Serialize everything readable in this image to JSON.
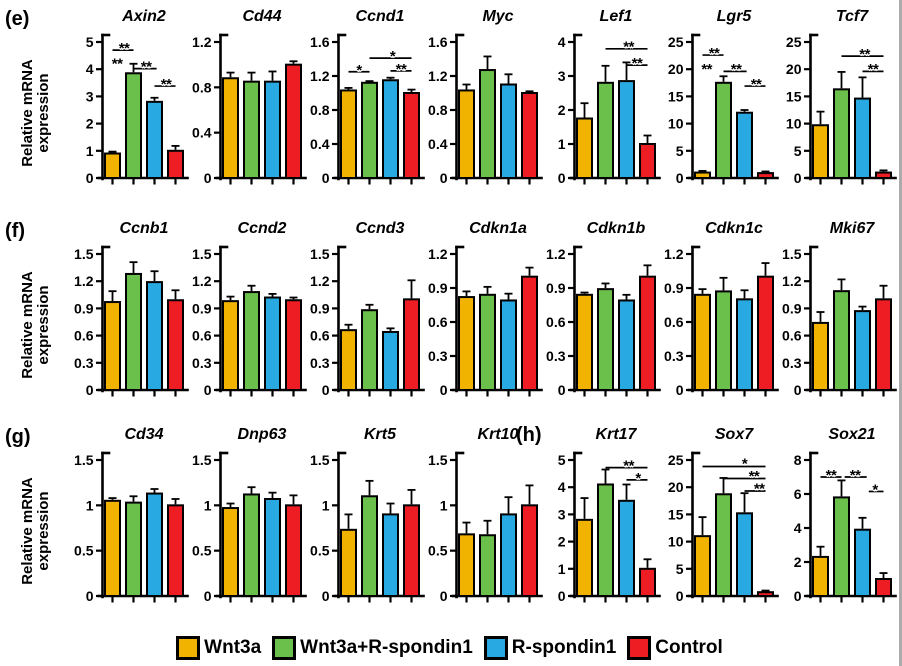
{
  "figure": {
    "panel_labels": {
      "e": "(e)",
      "f": "(f)",
      "g": "(g)",
      "h": "(h)"
    },
    "y_axis_label": "Relative mRNA expression",
    "y_axis_label_lines": [
      "Relative mRNA",
      "expression"
    ],
    "groups": [
      "Wnt3a",
      "Wnt3a+R-spondin1",
      "R-spondin1",
      "Control"
    ],
    "colors": {
      "Wnt3a": "#F2B200",
      "Wnt3a+R-spondin1": "#6BC04B",
      "R-spondin1": "#29A9E1",
      "Control": "#EE1D23"
    },
    "legend": [
      {
        "label": "Wnt3a",
        "color": "#F2B200"
      },
      {
        "label": "Wnt3a+R-spondin1",
        "color": "#6BC04B"
      },
      {
        "label": "R-spondin1",
        "color": "#29A9E1"
      },
      {
        "label": "Control",
        "color": "#EE1D23"
      }
    ]
  },
  "chart_data": [
    {
      "panel": "e",
      "type": "bar",
      "title": "Axin2",
      "ylabel": "Relative mRNA expression",
      "categories": [
        "Wnt3a",
        "Wnt3a+R-spondin1",
        "R-spondin1",
        "Control"
      ],
      "values": [
        0.9,
        3.85,
        2.8,
        1.0
      ],
      "errors": [
        0.07,
        0.35,
        0.15,
        0.18
      ],
      "ylim": [
        0,
        5
      ],
      "yticks": [
        "0",
        "1",
        "2",
        "3",
        "4",
        "5"
      ],
      "sig_lines": [
        [
          0,
          1,
          4.7
        ],
        [
          1,
          2.1,
          4.02
        ],
        [
          2,
          3,
          3.38
        ]
      ],
      "sig_stars": [
        [
          "**",
          0.55,
          4.81
        ],
        [
          "**",
          0.22,
          4.25
        ],
        [
          "**",
          1.6,
          4.13
        ],
        [
          "**",
          2.55,
          3.49
        ]
      ]
    },
    {
      "panel": "e",
      "type": "bar",
      "title": "Cd44",
      "ylabel": "Relative mRNA expression",
      "categories": [
        "Wnt3a",
        "Wnt3a+R-spondin1",
        "R-spondin1",
        "Control"
      ],
      "values": [
        0.88,
        0.85,
        0.85,
        1.0
      ],
      "errors": [
        0.05,
        0.08,
        0.09,
        0.03
      ],
      "ylim": [
        0,
        1.2
      ],
      "yticks": [
        "0",
        "0.4",
        "0.8",
        "1.2"
      ],
      "sig_lines": [],
      "sig_stars": []
    },
    {
      "panel": "e",
      "type": "bar",
      "title": "Ccnd1",
      "ylabel": "Relative mRNA expression",
      "categories": [
        "Wnt3a",
        "Wnt3a+R-spondin1",
        "R-spondin1",
        "Control"
      ],
      "values": [
        1.03,
        1.12,
        1.15,
        1.0
      ],
      "errors": [
        0.03,
        0.02,
        0.03,
        0.04
      ],
      "ylim": [
        0,
        1.6
      ],
      "yticks": [
        "0",
        "0.4",
        "0.8",
        "1.2",
        "1.6"
      ],
      "sig_lines": [
        [
          0,
          1,
          1.25
        ],
        [
          1,
          3,
          1.41
        ],
        [
          2,
          3,
          1.26
        ]
      ],
      "sig_stars": [
        [
          "*",
          0.5,
          1.285
        ],
        [
          "*",
          2.1,
          1.445
        ],
        [
          "**",
          2.5,
          1.295
        ]
      ]
    },
    {
      "panel": "e",
      "type": "bar",
      "title": "Myc",
      "ylabel": "Relative mRNA expression",
      "categories": [
        "Wnt3a",
        "Wnt3a+R-spondin1",
        "R-spondin1",
        "Control"
      ],
      "values": [
        1.03,
        1.27,
        1.1,
        1.0
      ],
      "errors": [
        0.07,
        0.16,
        0.12,
        0.02
      ],
      "ylim": [
        0,
        1.6
      ],
      "yticks": [
        "0",
        "0.4",
        "0.8",
        "1.2",
        "1.6"
      ],
      "sig_lines": [],
      "sig_stars": []
    },
    {
      "panel": "e",
      "type": "bar",
      "title": "Lef1",
      "ylabel": "Relative mRNA expression",
      "categories": [
        "Wnt3a",
        "Wnt3a+R-spondin1",
        "R-spondin1",
        "Control"
      ],
      "values": [
        1.75,
        2.8,
        2.85,
        1.0
      ],
      "errors": [
        0.45,
        0.5,
        0.55,
        0.25
      ],
      "ylim": [
        0,
        4
      ],
      "yticks": [
        "0",
        "1",
        "2",
        "3",
        "4"
      ],
      "sig_lines": [
        [
          1,
          3,
          3.8
        ],
        [
          2,
          3,
          3.32
        ]
      ],
      "sig_stars": [
        [
          "**",
          2.1,
          3.89
        ],
        [
          "**",
          2.5,
          3.41
        ]
      ]
    },
    {
      "panel": "e",
      "type": "bar",
      "title": "Lgr5",
      "ylabel": "Relative mRNA expression",
      "categories": [
        "Wnt3a",
        "Wnt3a+R-spondin1",
        "R-spondin1",
        "Control"
      ],
      "values": [
        1.0,
        17.5,
        12.0,
        0.9
      ],
      "errors": [
        0.3,
        1.2,
        0.5,
        0.3
      ],
      "ylim": [
        0,
        25
      ],
      "yticks": [
        "0",
        "5",
        "10",
        "15",
        "20",
        "25"
      ],
      "sig_lines": [
        [
          0,
          1,
          22.6
        ],
        [
          1,
          2.1,
          19.6
        ],
        [
          2,
          3,
          16.9
        ]
      ],
      "sig_stars": [
        [
          "**",
          0.55,
          23.2
        ],
        [
          "**",
          0.2,
          20.2
        ],
        [
          "**",
          1.6,
          20.2
        ],
        [
          "**",
          2.55,
          17.5
        ]
      ]
    },
    {
      "panel": "e",
      "type": "bar",
      "title": "Tcf7",
      "ylabel": "Relative mRNA expression",
      "categories": [
        "Wnt3a",
        "Wnt3a+R-spondin1",
        "R-spondin1",
        "Control"
      ],
      "values": [
        9.7,
        16.3,
        14.6,
        1.0
      ],
      "errors": [
        2.5,
        3.2,
        3.9,
        0.4
      ],
      "ylim": [
        0,
        25
      ],
      "yticks": [
        "0",
        "5",
        "10",
        "15",
        "20",
        "25"
      ],
      "sig_lines": [
        [
          1,
          3,
          22.4
        ],
        [
          2,
          3,
          19.6
        ]
      ],
      "sig_stars": [
        [
          "**",
          2.1,
          23.0
        ],
        [
          "**",
          2.5,
          20.2
        ]
      ]
    },
    {
      "panel": "f",
      "type": "bar",
      "title": "Ccnb1",
      "ylabel": "Relative mRNA expression",
      "categories": [
        "Wnt3a",
        "Wnt3a+R-spondin1",
        "R-spondin1",
        "Control"
      ],
      "values": [
        0.97,
        1.28,
        1.19,
        0.99
      ],
      "errors": [
        0.12,
        0.13,
        0.12,
        0.11
      ],
      "ylim": [
        0,
        1.5
      ],
      "yticks": [
        "0",
        "0.3",
        "0.6",
        "0.9",
        "1.2",
        "1.5"
      ],
      "sig_lines": [],
      "sig_stars": []
    },
    {
      "panel": "f",
      "type": "bar",
      "title": "Ccnd2",
      "ylabel": "Relative mRNA expression",
      "categories": [
        "Wnt3a",
        "Wnt3a+R-spondin1",
        "R-spondin1",
        "Control"
      ],
      "values": [
        0.98,
        1.08,
        1.02,
        0.99
      ],
      "errors": [
        0.05,
        0.07,
        0.04,
        0.03
      ],
      "ylim": [
        0,
        1.5
      ],
      "yticks": [
        "0",
        "0.3",
        "0.6",
        "0.9",
        "1.2",
        "1.5"
      ],
      "sig_lines": [],
      "sig_stars": []
    },
    {
      "panel": "f",
      "type": "bar",
      "title": "Ccnd3",
      "ylabel": "Relative mRNA expression",
      "categories": [
        "Wnt3a",
        "Wnt3a+R-spondin1",
        "R-spondin1",
        "Control"
      ],
      "values": [
        0.66,
        0.88,
        0.64,
        1.0
      ],
      "errors": [
        0.06,
        0.06,
        0.04,
        0.21
      ],
      "ylim": [
        0,
        1.5
      ],
      "yticks": [
        "0",
        "0.3",
        "0.6",
        "0.9",
        "1.2",
        "1.5"
      ],
      "sig_lines": [],
      "sig_stars": []
    },
    {
      "panel": "f",
      "type": "bar",
      "title": "Cdkn1a",
      "ylabel": "Relative mRNA expression",
      "categories": [
        "Wnt3a",
        "Wnt3a+R-spondin1",
        "R-spondin1",
        "Control"
      ],
      "values": [
        0.82,
        0.84,
        0.79,
        1.0
      ],
      "errors": [
        0.05,
        0.07,
        0.06,
        0.08
      ],
      "ylim": [
        0,
        1.2
      ],
      "yticks": [
        "0",
        "0.3",
        "0.6",
        "0.9",
        "1.2"
      ],
      "sig_lines": [],
      "sig_stars": []
    },
    {
      "panel": "f",
      "type": "bar",
      "title": "Cdkn1b",
      "ylabel": "Relative mRNA expression",
      "categories": [
        "Wnt3a",
        "Wnt3a+R-spondin1",
        "R-spondin1",
        "Control"
      ],
      "values": [
        0.84,
        0.89,
        0.79,
        1.0
      ],
      "errors": [
        0.02,
        0.05,
        0.05,
        0.1
      ],
      "ylim": [
        0,
        1.2
      ],
      "yticks": [
        "0",
        "0.3",
        "0.6",
        "0.9",
        "1.2"
      ],
      "sig_lines": [],
      "sig_stars": []
    },
    {
      "panel": "f",
      "type": "bar",
      "title": "Cdkn1c",
      "ylabel": "Relative mRNA expression",
      "categories": [
        "Wnt3a",
        "Wnt3a+R-spondin1",
        "R-spondin1",
        "Control"
      ],
      "values": [
        0.84,
        0.87,
        0.8,
        1.0
      ],
      "errors": [
        0.05,
        0.12,
        0.08,
        0.12
      ],
      "ylim": [
        0,
        1.2
      ],
      "yticks": [
        "0",
        "0.3",
        "0.6",
        "0.9",
        "1.2"
      ],
      "sig_lines": [],
      "sig_stars": []
    },
    {
      "panel": "f",
      "type": "bar",
      "title": "Mki67",
      "ylabel": "Relative mRNA expression",
      "categories": [
        "Wnt3a",
        "Wnt3a+R-spondin1",
        "R-spondin1",
        "Control"
      ],
      "values": [
        0.74,
        1.09,
        0.87,
        1.0
      ],
      "errors": [
        0.12,
        0.13,
        0.05,
        0.15
      ],
      "ylim": [
        0,
        1.5
      ],
      "yticks": [
        "0",
        "0.3",
        "0.6",
        "0.9",
        "1.2",
        "1.5"
      ],
      "sig_lines": [],
      "sig_stars": []
    },
    {
      "panel": "g",
      "type": "bar",
      "title": "Cd34",
      "ylabel": "Relative mRNA expression",
      "categories": [
        "Wnt3a",
        "Wnt3a+R-spondin1",
        "R-spondin1",
        "Control"
      ],
      "values": [
        1.05,
        1.03,
        1.13,
        1.0
      ],
      "errors": [
        0.03,
        0.07,
        0.05,
        0.07
      ],
      "ylim": [
        0,
        1.5
      ],
      "yticks": [
        "0",
        "0.5",
        "1",
        "1.5"
      ],
      "sig_lines": [],
      "sig_stars": []
    },
    {
      "panel": "g",
      "type": "bar",
      "title": "Dnp63",
      "ylabel": "Relative mRNA expression",
      "categories": [
        "Wnt3a",
        "Wnt3a+R-spondin1",
        "R-spondin1",
        "Control"
      ],
      "values": [
        0.97,
        1.12,
        1.07,
        1.0
      ],
      "errors": [
        0.05,
        0.08,
        0.07,
        0.11
      ],
      "ylim": [
        0,
        1.5
      ],
      "yticks": [
        "0",
        "0.5",
        "1",
        "1.5"
      ],
      "sig_lines": [],
      "sig_stars": []
    },
    {
      "panel": "g",
      "type": "bar",
      "title": "Krt5",
      "ylabel": "Relative mRNA expression",
      "categories": [
        "Wnt3a",
        "Wnt3a+R-spondin1",
        "R-spondin1",
        "Control"
      ],
      "values": [
        0.73,
        1.1,
        0.9,
        1.0
      ],
      "errors": [
        0.17,
        0.17,
        0.12,
        0.17
      ],
      "ylim": [
        0,
        1.5
      ],
      "yticks": [
        "0",
        "0.5",
        "1",
        "1.5"
      ],
      "sig_lines": [],
      "sig_stars": []
    },
    {
      "panel": "g",
      "type": "bar",
      "title": "Krt10",
      "ylabel": "Relative mRNA expression",
      "categories": [
        "Wnt3a",
        "Wnt3a+R-spondin1",
        "R-spondin1",
        "Control"
      ],
      "values": [
        0.68,
        0.67,
        0.9,
        1.0
      ],
      "errors": [
        0.13,
        0.16,
        0.19,
        0.22
      ],
      "ylim": [
        0,
        1.5
      ],
      "yticks": [
        "0",
        "0.5",
        "1",
        "1.5"
      ],
      "sig_lines": [],
      "sig_stars": []
    },
    {
      "panel": "h",
      "type": "bar",
      "title": "Krt17",
      "ylabel": "Relative mRNA expression",
      "categories": [
        "Wnt3a",
        "Wnt3a+R-spondin1",
        "R-spondin1",
        "Control"
      ],
      "values": [
        2.8,
        4.1,
        3.5,
        1.0
      ],
      "errors": [
        0.8,
        0.55,
        0.6,
        0.35
      ],
      "ylim": [
        0,
        5
      ],
      "yticks": [
        "0",
        "1",
        "2",
        "3",
        "4",
        "5"
      ],
      "sig_lines": [
        [
          1,
          3,
          4.72
        ],
        [
          2,
          3,
          4.27
        ]
      ],
      "sig_stars": [
        [
          "**",
          2.1,
          4.83
        ],
        [
          "*",
          2.55,
          4.38
        ]
      ]
    },
    {
      "panel": "h",
      "type": "bar",
      "title": "Sox7",
      "ylabel": "Relative mRNA expression",
      "categories": [
        "Wnt3a",
        "Wnt3a+R-spondin1",
        "R-spondin1",
        "Control"
      ],
      "values": [
        11.0,
        18.7,
        15.2,
        0.7
      ],
      "errors": [
        3.5,
        3.0,
        3.7,
        0.3
      ],
      "ylim": [
        0,
        25
      ],
      "yticks": [
        "0",
        "5",
        "10",
        "15",
        "20",
        "25"
      ],
      "sig_lines": [
        [
          0,
          3,
          23.8
        ],
        [
          1,
          3,
          21.6
        ],
        [
          2,
          3,
          19.3
        ]
      ],
      "sig_stars": [
        [
          "*",
          2.0,
          24.5
        ],
        [
          "**",
          2.45,
          22.25
        ],
        [
          "**",
          2.7,
          19.95
        ]
      ]
    },
    {
      "panel": "h",
      "type": "bar",
      "title": "Sox21",
      "ylabel": "Relative mRNA expression",
      "categories": [
        "Wnt3a",
        "Wnt3a+R-spondin1",
        "R-spondin1",
        "Control"
      ],
      "values": [
        2.3,
        5.8,
        3.9,
        1.0
      ],
      "errors": [
        0.6,
        1.0,
        0.7,
        0.35
      ],
      "ylim": [
        0,
        8
      ],
      "yticks": [
        "0",
        "2",
        "4",
        "6",
        "8"
      ],
      "sig_lines": [
        [
          0,
          1,
          7.0
        ],
        [
          1.15,
          2.2,
          7.0
        ],
        [
          2.3,
          3,
          6.15
        ]
      ],
      "sig_stars": [
        [
          "**",
          0.5,
          7.18
        ],
        [
          "**",
          1.65,
          7.18
        ],
        [
          "*",
          2.6,
          6.33
        ]
      ]
    }
  ]
}
